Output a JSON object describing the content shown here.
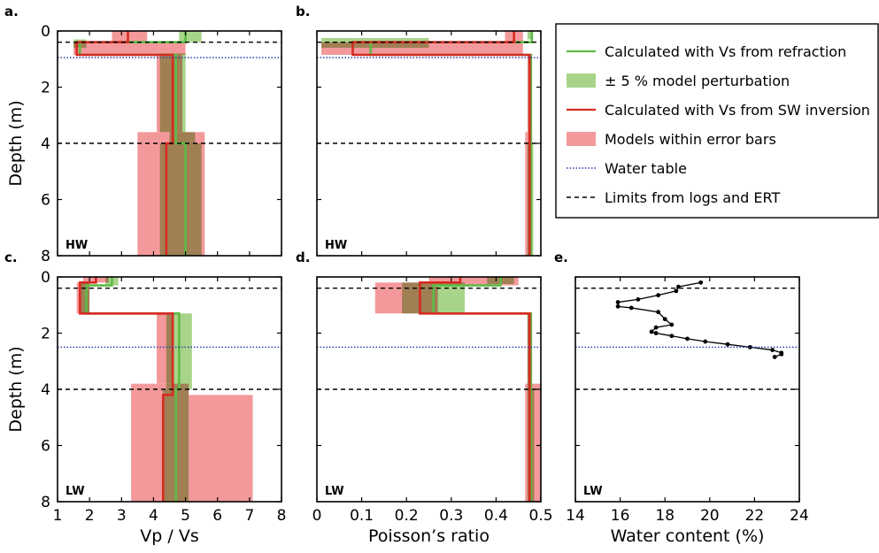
{
  "chart_data": [
    {
      "type": "area",
      "panel": "a.",
      "tag": "HW",
      "xlim": [
        1,
        8
      ],
      "ylim": [
        8,
        0
      ],
      "xticks": [
        1,
        2,
        3,
        4,
        5,
        6,
        7,
        8
      ],
      "yticks": [
        0,
        2,
        4,
        6,
        8
      ],
      "show_xticklabels": false,
      "xlabel": "",
      "ylabel": "Depth (m)",
      "dashed_limits": [
        0.4,
        4.0
      ],
      "water_table": 0.95,
      "red_boxes": [
        [
          2.7,
          3.8,
          0,
          0.4
        ],
        [
          1.5,
          5.0,
          0.4,
          0.85
        ],
        [
          4.1,
          4.9,
          0.85,
          3.6
        ],
        [
          3.5,
          5.6,
          3.6,
          8.0
        ]
      ],
      "green_boxes": [
        [
          4.8,
          5.5,
          0,
          0.4
        ],
        [
          1.5,
          1.9,
          0.3,
          0.6
        ],
        [
          4.2,
          5.0,
          0.8,
          3.6
        ],
        [
          4.5,
          5.3,
          3.6,
          4.0
        ],
        [
          4.2,
          5.5,
          4.0,
          8.0
        ]
      ],
      "red_line": [
        [
          3.2,
          0
        ],
        [
          3.2,
          0.4
        ],
        [
          1.6,
          0.4
        ],
        [
          1.6,
          0.85
        ],
        [
          4.6,
          0.85
        ],
        [
          4.6,
          4.0
        ],
        [
          4.4,
          4.0
        ],
        [
          4.4,
          8.0
        ]
      ],
      "green_line": [
        [
          5.0,
          0
        ],
        [
          5.0,
          0.4
        ],
        [
          1.7,
          0.4
        ],
        [
          1.7,
          0.85
        ],
        [
          4.7,
          0.85
        ],
        [
          4.7,
          4.0
        ],
        [
          5.0,
          4.0
        ],
        [
          5.0,
          8.0
        ]
      ]
    },
    {
      "type": "area",
      "panel": "b.",
      "tag": "HW",
      "xlim": [
        0,
        0.5
      ],
      "ylim": [
        8,
        0
      ],
      "xticks": [
        0,
        0.1,
        0.2,
        0.3,
        0.4,
        0.5
      ],
      "yticks": [
        0,
        2,
        4,
        6,
        8
      ],
      "show_xticklabels": false,
      "show_yticklabels": false,
      "dashed_limits": [
        0.4,
        4.0
      ],
      "water_table": 0.95,
      "red_boxes": [
        [
          0.42,
          0.46,
          0,
          0.4
        ],
        [
          0.01,
          0.46,
          0.4,
          0.85
        ],
        [
          0.47,
          0.48,
          0.85,
          3.6
        ],
        [
          0.465,
          0.48,
          3.6,
          8.0
        ]
      ],
      "green_boxes": [
        [
          0.47,
          0.48,
          0,
          0.3
        ],
        [
          0.01,
          0.25,
          0.25,
          0.6
        ],
        [
          0.472,
          0.48,
          0.85,
          4.0
        ],
        [
          0.47,
          0.483,
          4.0,
          8.0
        ]
      ],
      "red_line": [
        [
          0.44,
          0
        ],
        [
          0.44,
          0.4
        ],
        [
          0.08,
          0.4
        ],
        [
          0.08,
          0.85
        ],
        [
          0.475,
          0.85
        ],
        [
          0.475,
          8.0
        ]
      ],
      "green_line": [
        [
          0.48,
          0
        ],
        [
          0.48,
          0.4
        ],
        [
          0.12,
          0.4
        ],
        [
          0.12,
          0.85
        ],
        [
          0.478,
          0.85
        ],
        [
          0.478,
          8.0
        ]
      ]
    },
    {
      "type": "area",
      "panel": "c.",
      "tag": "LW",
      "xlim": [
        1,
        8
      ],
      "ylim": [
        8,
        0
      ],
      "xticks": [
        1,
        2,
        3,
        4,
        5,
        6,
        7,
        8
      ],
      "yticks": [
        0,
        2,
        4,
        6,
        8
      ],
      "show_xticklabels": true,
      "xlabel": "Vp / Vs",
      "ylabel": "Depth (m)",
      "dashed_limits": [
        0.4,
        4.0
      ],
      "water_table": 2.5,
      "red_boxes": [
        [
          1.8,
          2.6,
          0,
          0.2
        ],
        [
          1.6,
          2.0,
          0.2,
          1.3
        ],
        [
          4.1,
          4.6,
          1.3,
          3.8
        ],
        [
          3.3,
          5.1,
          3.8,
          8.0
        ],
        [
          5.1,
          7.1,
          4.2,
          8.0
        ]
      ],
      "green_boxes": [
        [
          2.5,
          2.9,
          0,
          0.3
        ],
        [
          1.7,
          2.0,
          0.2,
          1.3
        ],
        [
          4.4,
          5.2,
          1.3,
          4.0
        ],
        [
          4.3,
          5.1,
          4.0,
          8.0
        ]
      ],
      "red_line": [
        [
          2.2,
          0
        ],
        [
          2.2,
          0.2
        ],
        [
          1.7,
          0.2
        ],
        [
          1.7,
          1.3
        ],
        [
          4.6,
          1.3
        ],
        [
          4.6,
          4.2
        ],
        [
          4.3,
          4.2
        ],
        [
          4.3,
          8.0
        ]
      ],
      "green_line": [
        [
          2.7,
          0
        ],
        [
          2.7,
          0.3
        ],
        [
          1.9,
          0.3
        ],
        [
          1.9,
          1.3
        ],
        [
          4.8,
          1.3
        ],
        [
          4.8,
          4.0
        ],
        [
          4.7,
          4.0
        ],
        [
          4.7,
          8.0
        ]
      ]
    },
    {
      "type": "area",
      "panel": "d.",
      "tag": "LW",
      "xlim": [
        0,
        0.5
      ],
      "ylim": [
        8,
        0
      ],
      "xticks": [
        0,
        0.1,
        0.2,
        0.3,
        0.4,
        0.5
      ],
      "yticks": [
        0,
        2,
        4,
        6,
        8
      ],
      "show_xticklabels": true,
      "show_yticklabels": false,
      "xlabel": "Poisson’s ratio",
      "dashed_limits": [
        0.4,
        4.0
      ],
      "water_table": 2.5,
      "red_boxes": [
        [
          0.25,
          0.45,
          0,
          0.3
        ],
        [
          0.13,
          0.27,
          0.2,
          1.3
        ],
        [
          0.47,
          0.48,
          1.3,
          3.8
        ],
        [
          0.465,
          0.5,
          3.8,
          8.0
        ]
      ],
      "green_boxes": [
        [
          0.38,
          0.44,
          0,
          0.25
        ],
        [
          0.19,
          0.33,
          0.2,
          1.3
        ],
        [
          0.47,
          0.48,
          1.3,
          4.0
        ],
        [
          0.47,
          0.485,
          4.0,
          8.0
        ]
      ],
      "red_line": [
        [
          0.32,
          0
        ],
        [
          0.32,
          0.2
        ],
        [
          0.23,
          0.2
        ],
        [
          0.23,
          1.3
        ],
        [
          0.475,
          1.3
        ],
        [
          0.475,
          8.0
        ]
      ],
      "green_line": [
        [
          0.41,
          0
        ],
        [
          0.41,
          0.3
        ],
        [
          0.26,
          0.3
        ],
        [
          0.26,
          1.3
        ],
        [
          0.478,
          1.3
        ],
        [
          0.478,
          8.0
        ]
      ]
    },
    {
      "type": "line",
      "panel": "e.",
      "tag": "LW",
      "xlim": [
        14,
        24
      ],
      "ylim": [
        8,
        0
      ],
      "xticks": [
        14,
        16,
        18,
        20,
        22,
        24
      ],
      "yticks": [
        0,
        2,
        4,
        6,
        8
      ],
      "show_xticklabels": true,
      "show_yticklabels": false,
      "xlabel": "Water content (%)",
      "dashed_limits": [
        0.4,
        4.0
      ],
      "water_table": 2.5,
      "water_content": [
        [
          19.6,
          0.2
        ],
        [
          18.6,
          0.35
        ],
        [
          18.5,
          0.5
        ],
        [
          17.7,
          0.65
        ],
        [
          16.8,
          0.8
        ],
        [
          15.9,
          0.9
        ],
        [
          15.9,
          1.05
        ],
        [
          16.5,
          1.1
        ],
        [
          17.7,
          1.25
        ],
        [
          18.0,
          1.5
        ],
        [
          18.3,
          1.7
        ],
        [
          17.6,
          1.8
        ],
        [
          17.4,
          1.95
        ],
        [
          17.6,
          2.0
        ],
        [
          18.3,
          2.1
        ],
        [
          19.0,
          2.2
        ],
        [
          19.8,
          2.3
        ],
        [
          20.8,
          2.4
        ],
        [
          21.8,
          2.5
        ],
        [
          22.8,
          2.6
        ],
        [
          23.2,
          2.7
        ],
        [
          23.2,
          2.75
        ],
        [
          22.9,
          2.85
        ]
      ]
    }
  ],
  "legend": {
    "items": [
      {
        "label": "Calculated with Vs from refraction",
        "kind": "line",
        "color": "#5dbb46"
      },
      {
        "label": "± 5 % model perturbation",
        "kind": "patch",
        "color": "#a8d48a"
      },
      {
        "label": "Calculated with Vs from SW inversion",
        "kind": "line",
        "color": "#d62b22"
      },
      {
        "label": "Models within error bars",
        "kind": "patch",
        "color": "#f3999b"
      },
      {
        "label": "Water table",
        "kind": "dotted",
        "color": "#2c3fb0"
      },
      {
        "label": "Limits from logs and ERT",
        "kind": "dashed",
        "color": "#000000"
      }
    ]
  },
  "colors": {
    "green_line": "#5dbb46",
    "green_fill": "#a8d48a",
    "red_line": "#d62b22",
    "red_fill": "#f3999b",
    "water_table": "#2c3fb0",
    "limits": "#000000"
  }
}
